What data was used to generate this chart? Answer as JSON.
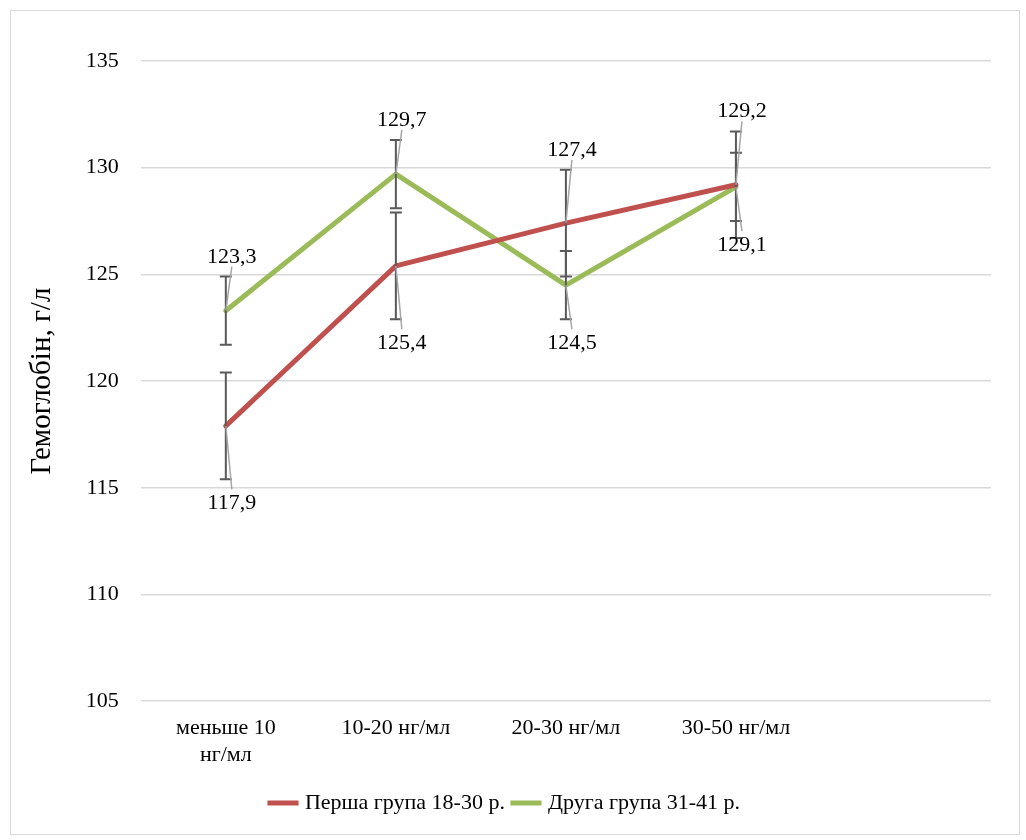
{
  "chart_data": {
    "type": "line",
    "ylabel": "Гемоглобін, г/л",
    "categories": [
      "меньше 10 нг/мл",
      "10-20 нг/мл",
      "20-30 нг/мл",
      "30-50 нг/мл",
      null
    ],
    "series": [
      {
        "name": "Перша група 18-30 р.",
        "color": "#c0504d",
        "values": [
          117.9,
          125.4,
          127.4,
          129.2,
          null
        ],
        "errors": [
          2.5,
          2.5,
          2.5,
          2.5,
          null
        ],
        "value_labels": [
          "117,9",
          "125,4",
          "127,4",
          "129,2",
          null
        ]
      },
      {
        "name": "Друга група 31-41 р.",
        "color": "#9bbb59",
        "values": [
          123.3,
          129.7,
          124.5,
          129.1,
          null
        ],
        "errors": [
          1.6,
          1.6,
          1.6,
          1.6,
          null
        ],
        "value_labels": [
          "123,3",
          "129,7",
          "124,5",
          "129,1",
          null
        ]
      }
    ],
    "ylim": [
      105,
      135
    ],
    "yticks": [
      105,
      110,
      115,
      120,
      125,
      130,
      135
    ],
    "grid": "y",
    "legend": "bottom",
    "marker": "none",
    "line_style": "solid"
  }
}
